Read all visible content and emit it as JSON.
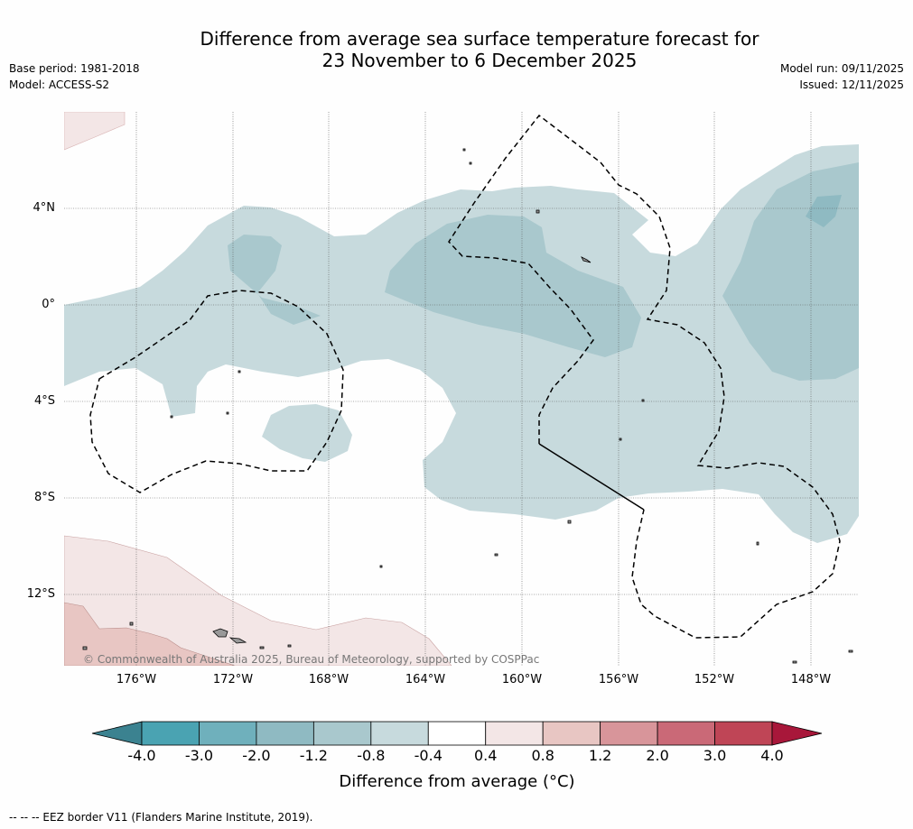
{
  "header": {
    "title_line1": "Difference from average sea surface temperature forecast for",
    "title_line2": "23 November to 6 December 2025",
    "base_period": "Base period: 1981-2018",
    "model": "Model: ACCESS-S2",
    "model_run": "Model run: 09/11/2025",
    "issued": "Issued: 12/11/2025"
  },
  "map": {
    "lat_labels": [
      "4°N",
      "0°",
      "4°S",
      "8°S",
      "12°S"
    ],
    "lon_labels": [
      "176°W",
      "172°W",
      "168°W",
      "164°W",
      "160°W",
      "156°W",
      "152°W",
      "148°W"
    ],
    "copyright": "© Commonwealth of Australia 2025, Bureau of Meteorology, supported by COSPPac",
    "eez_label": "EEZ border"
  },
  "colorbar": {
    "title": "Difference from average (°C)",
    "tick_labels": [
      "-4.0",
      "-3.0",
      "-2.0",
      "-1.2",
      "-0.8",
      "-0.4",
      "0.4",
      "0.8",
      "1.2",
      "2.0",
      "3.0",
      "4.0"
    ],
    "colors": [
      "#4aa3b2",
      "#6fb0bc",
      "#8fbac2",
      "#a9c8cd",
      "#c7dadd",
      "#ffffff",
      "#f3e6e6",
      "#e8c6c3",
      "#d8959a",
      "#ca6977",
      "#bf4556"
    ],
    "under_color": "#3b8290",
    "over_color": "#a8173a"
  },
  "legend": {
    "footnote": "--  --  -- EEZ border V11 (Flanders Marine Institute, 2019)."
  }
}
